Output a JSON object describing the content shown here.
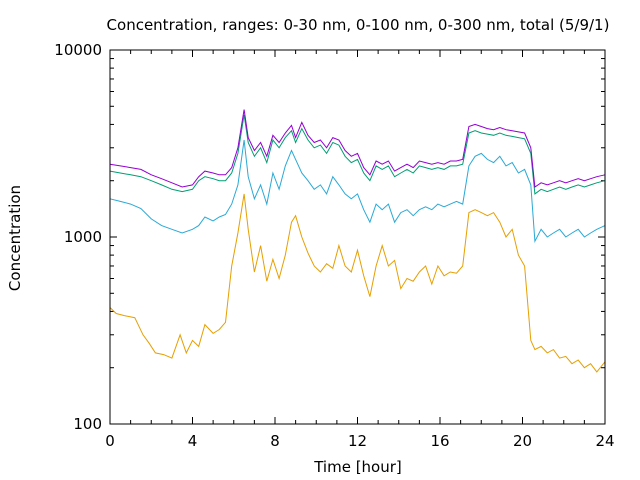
{
  "chart_data": {
    "type": "line",
    "title": "Concentration, ranges: 0-30 nm, 0-100 nm, 0-300 nm, total (5/9/1)",
    "xlabel": "Time [hour]",
    "ylabel": "Concentration",
    "xlim": [
      0,
      24
    ],
    "ylim": [
      100,
      10000
    ],
    "yscale": "log",
    "xticks": [
      "0",
      "4",
      "8",
      "12",
      "16",
      "20",
      "24"
    ],
    "yticks": [
      "100",
      "1000",
      "10000"
    ],
    "grid": false,
    "legend": "none",
    "series": [
      {
        "color": "#E69F00",
        "x": [
          0,
          0.3,
          0.7,
          1.2,
          1.6,
          1.9,
          2.2,
          2.6,
          3.0,
          3.4,
          3.7,
          4.0,
          4.3,
          4.6,
          5.0,
          5.3,
          5.6,
          5.9,
          6.2,
          6.5,
          6.7,
          7.0,
          7.3,
          7.6,
          7.9,
          8.2,
          8.5,
          8.8,
          9.0,
          9.3,
          9.6,
          9.9,
          10.2,
          10.5,
          10.8,
          11.1,
          11.4,
          11.7,
          12.0,
          12.3,
          12.6,
          12.9,
          13.2,
          13.5,
          13.8,
          14.1,
          14.4,
          14.7,
          15.0,
          15.3,
          15.6,
          15.9,
          16.2,
          16.5,
          16.8,
          17.1,
          17.4,
          17.7,
          18.0,
          18.3,
          18.6,
          18.9,
          19.2,
          19.5,
          19.8,
          20.1,
          20.4,
          20.6,
          20.9,
          21.2,
          21.5,
          21.8,
          22.1,
          22.4,
          22.7,
          23.0,
          23.3,
          23.6,
          24.0
        ],
        "y": [
          420,
          390,
          380,
          370,
          300,
          270,
          240,
          235,
          225,
          300,
          240,
          280,
          260,
          340,
          305,
          320,
          350,
          700,
          1050,
          1700,
          1100,
          650,
          900,
          580,
          760,
          600,
          800,
          1200,
          1300,
          1000,
          820,
          700,
          650,
          720,
          680,
          900,
          700,
          650,
          850,
          620,
          480,
          700,
          900,
          700,
          750,
          530,
          600,
          580,
          650,
          700,
          560,
          700,
          620,
          650,
          640,
          700,
          1350,
          1400,
          1350,
          1300,
          1350,
          1200,
          1000,
          1100,
          800,
          700,
          280,
          250,
          260,
          240,
          250,
          225,
          230,
          210,
          220,
          200,
          210,
          190,
          215
        ]
      },
      {
        "color": "#29A9D6",
        "x": [
          0,
          0.5,
          1.0,
          1.5,
          2.0,
          2.5,
          3.0,
          3.5,
          4.0,
          4.3,
          4.6,
          5.0,
          5.3,
          5.6,
          5.9,
          6.2,
          6.5,
          6.7,
          7.0,
          7.3,
          7.6,
          7.9,
          8.2,
          8.5,
          8.8,
          9.0,
          9.3,
          9.6,
          9.9,
          10.2,
          10.5,
          10.8,
          11.1,
          11.4,
          11.7,
          12.0,
          12.3,
          12.6,
          12.9,
          13.2,
          13.5,
          13.8,
          14.1,
          14.4,
          14.7,
          15.0,
          15.3,
          15.6,
          15.9,
          16.2,
          16.5,
          16.8,
          17.1,
          17.4,
          17.7,
          18.0,
          18.3,
          18.6,
          18.9,
          19.2,
          19.5,
          19.8,
          20.1,
          20.4,
          20.6,
          20.9,
          21.2,
          21.5,
          21.8,
          22.1,
          22.4,
          22.7,
          23.0,
          23.3,
          23.6,
          24.0
        ],
        "y": [
          1600,
          1550,
          1500,
          1420,
          1250,
          1150,
          1100,
          1050,
          1100,
          1150,
          1280,
          1220,
          1280,
          1320,
          1500,
          1900,
          3300,
          2100,
          1600,
          1900,
          1500,
          2200,
          1800,
          2400,
          2900,
          2600,
          2200,
          2000,
          1800,
          1900,
          1700,
          2100,
          1900,
          1700,
          1600,
          1700,
          1400,
          1200,
          1500,
          1400,
          1500,
          1200,
          1350,
          1400,
          1300,
          1400,
          1450,
          1400,
          1500,
          1450,
          1500,
          1550,
          1500,
          2400,
          2700,
          2800,
          2600,
          2500,
          2700,
          2400,
          2500,
          2200,
          2300,
          1900,
          950,
          1100,
          1000,
          1050,
          1100,
          1000,
          1050,
          1100,
          1000,
          1050,
          1100,
          1150
        ]
      },
      {
        "color": "#009E73",
        "x": [
          0,
          0.5,
          1.0,
          1.5,
          2.0,
          2.5,
          3.0,
          3.5,
          4.0,
          4.3,
          4.6,
          5.0,
          5.3,
          5.6,
          5.9,
          6.2,
          6.5,
          6.7,
          7.0,
          7.3,
          7.6,
          7.9,
          8.2,
          8.5,
          8.8,
          9.0,
          9.3,
          9.6,
          9.9,
          10.2,
          10.5,
          10.8,
          11.1,
          11.4,
          11.7,
          12.0,
          12.3,
          12.6,
          12.9,
          13.2,
          13.5,
          13.8,
          14.1,
          14.4,
          14.7,
          15.0,
          15.3,
          15.6,
          15.9,
          16.2,
          16.5,
          16.8,
          17.1,
          17.4,
          17.7,
          18.0,
          18.3,
          18.6,
          18.9,
          19.2,
          19.5,
          19.8,
          20.1,
          20.4,
          20.6,
          20.9,
          21.2,
          21.5,
          21.8,
          22.1,
          22.4,
          22.7,
          23.0,
          23.3,
          23.6,
          24.0
        ],
        "y": [
          2250,
          2200,
          2150,
          2100,
          2000,
          1900,
          1800,
          1750,
          1800,
          2000,
          2100,
          2050,
          2000,
          2000,
          2200,
          2800,
          4500,
          3200,
          2700,
          3000,
          2500,
          3300,
          3000,
          3400,
          3700,
          3200,
          3800,
          3300,
          3000,
          3100,
          2800,
          3200,
          3100,
          2700,
          2500,
          2600,
          2200,
          2000,
          2400,
          2300,
          2400,
          2100,
          2200,
          2300,
          2200,
          2400,
          2350,
          2300,
          2350,
          2300,
          2400,
          2400,
          2450,
          3600,
          3700,
          3600,
          3550,
          3500,
          3600,
          3500,
          3450,
          3400,
          3350,
          2800,
          1700,
          1800,
          1750,
          1800,
          1850,
          1800,
          1850,
          1900,
          1850,
          1900,
          1950,
          2000
        ]
      },
      {
        "color": "#9400D3",
        "x": [
          0,
          0.5,
          1.0,
          1.5,
          2.0,
          2.5,
          3.0,
          3.5,
          4.0,
          4.3,
          4.6,
          5.0,
          5.3,
          5.6,
          5.9,
          6.2,
          6.5,
          6.7,
          7.0,
          7.3,
          7.6,
          7.9,
          8.2,
          8.5,
          8.8,
          9.0,
          9.3,
          9.6,
          9.9,
          10.2,
          10.5,
          10.8,
          11.1,
          11.4,
          11.7,
          12.0,
          12.3,
          12.6,
          12.9,
          13.2,
          13.5,
          13.8,
          14.1,
          14.4,
          14.7,
          15.0,
          15.3,
          15.6,
          15.9,
          16.2,
          16.5,
          16.8,
          17.1,
          17.4,
          17.7,
          18.0,
          18.3,
          18.6,
          18.9,
          19.2,
          19.5,
          19.8,
          20.1,
          20.4,
          20.6,
          20.9,
          21.2,
          21.5,
          21.8,
          22.1,
          22.4,
          22.7,
          23.0,
          23.3,
          23.6,
          24.0
        ],
        "y": [
          2450,
          2400,
          2350,
          2300,
          2150,
          2050,
          1950,
          1850,
          1900,
          2100,
          2250,
          2200,
          2150,
          2150,
          2350,
          3000,
          4800,
          3400,
          2900,
          3200,
          2700,
          3500,
          3200,
          3600,
          3950,
          3400,
          4100,
          3500,
          3200,
          3300,
          3000,
          3400,
          3300,
          2900,
          2700,
          2800,
          2350,
          2150,
          2550,
          2450,
          2550,
          2250,
          2350,
          2450,
          2350,
          2550,
          2500,
          2450,
          2500,
          2450,
          2550,
          2550,
          2600,
          3900,
          4000,
          3900,
          3800,
          3750,
          3850,
          3750,
          3700,
          3650,
          3600,
          3000,
          1850,
          1950,
          1900,
          1950,
          2000,
          1950,
          2000,
          2050,
          2000,
          2050,
          2100,
          2150
        ]
      }
    ]
  }
}
